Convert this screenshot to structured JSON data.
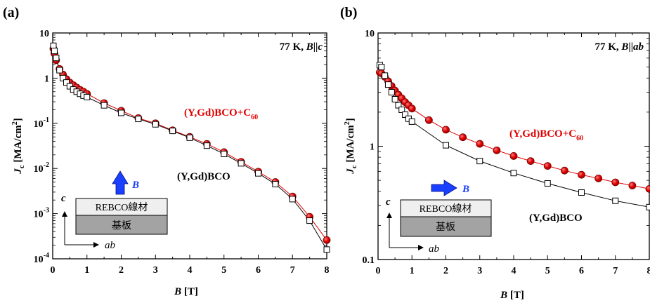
{
  "chart_data": [
    {
      "panel_label": "(a)",
      "type": "scatter",
      "condition_temp": "77 K, ",
      "condition_B": "B",
      "condition_rel": "||",
      "condition_dir": "c",
      "xlabel_main": "B",
      "xlabel_unit": " [T]",
      "ylabel_J": "J",
      "ylabel_sub": "c",
      "ylabel_unit": " [MA/cm",
      "ylabel_sup": "2",
      "ylabel_close": "]",
      "xlim": [
        0,
        8
      ],
      "ylim": [
        0.0001,
        10
      ],
      "yscale": "log",
      "x_ticks": [
        "0",
        "1",
        "2",
        "3",
        "4",
        "5",
        "6",
        "7",
        "8"
      ],
      "y_ticks": [
        {
          "base": "10",
          "exp": "-4",
          "value": 0.0001
        },
        {
          "base": "10",
          "exp": "-3",
          "value": 0.001
        },
        {
          "base": "10",
          "exp": "-2",
          "value": 0.01
        },
        {
          "base": "10",
          "exp": "-1",
          "value": 0.1
        },
        {
          "base": "1",
          "exp": "",
          "value": 1
        },
        {
          "base": "10",
          "exp": "",
          "value": 10
        }
      ],
      "series": [
        {
          "name_main": "(Y,Gd)BCO+C",
          "name_sub": "60",
          "color": "#e00000",
          "marker": "circle",
          "x": [
            0.02,
            0.05,
            0.1,
            0.2,
            0.3,
            0.4,
            0.5,
            0.6,
            0.7,
            0.8,
            0.9,
            1.0,
            1.5,
            2.0,
            2.5,
            3.0,
            3.5,
            4.0,
            4.5,
            5.0,
            5.5,
            6.0,
            6.5,
            7.0,
            7.5,
            8.0
          ],
          "y": [
            4.5,
            3.5,
            2.5,
            1.6,
            1.2,
            0.95,
            0.8,
            0.7,
            0.62,
            0.55,
            0.5,
            0.45,
            0.28,
            0.19,
            0.13,
            0.1,
            0.07,
            0.05,
            0.035,
            0.023,
            0.014,
            0.0085,
            0.005,
            0.0024,
            0.00085,
            0.00026
          ]
        },
        {
          "name_main": "(Y,Gd)BCO",
          "name_sub": "",
          "color": "#000000",
          "marker": "square",
          "x": [
            0.02,
            0.05,
            0.1,
            0.2,
            0.3,
            0.4,
            0.5,
            0.6,
            0.7,
            0.8,
            0.9,
            1.0,
            1.5,
            2.0,
            2.5,
            3.0,
            3.5,
            4.0,
            4.5,
            5.0,
            5.5,
            6.0,
            6.5,
            7.0,
            7.5,
            8.0
          ],
          "y": [
            5.2,
            4.0,
            2.8,
            1.5,
            1.0,
            0.8,
            0.66,
            0.56,
            0.5,
            0.45,
            0.41,
            0.38,
            0.25,
            0.17,
            0.125,
            0.095,
            0.068,
            0.048,
            0.032,
            0.021,
            0.013,
            0.0078,
            0.0045,
            0.0021,
            0.0007,
            0.00016
          ]
        }
      ]
    },
    {
      "panel_label": "(b)",
      "type": "scatter",
      "condition_temp": "77 K, ",
      "condition_B": "B",
      "condition_rel": "||",
      "condition_dir": "ab",
      "xlabel_main": "B",
      "xlabel_unit": " [T]",
      "ylabel_J": "J",
      "ylabel_sub": "c",
      "ylabel_unit": " [MA/cm",
      "ylabel_sup": "2",
      "ylabel_close": "]",
      "xlim": [
        0,
        8
      ],
      "ylim": [
        0.1,
        10
      ],
      "yscale": "log",
      "x_ticks": [
        "0",
        "1",
        "2",
        "3",
        "4",
        "5",
        "6",
        "7",
        "8"
      ],
      "y_ticks": [
        {
          "base": "0.1",
          "exp": "",
          "value": 0.1
        },
        {
          "base": "1",
          "exp": "",
          "value": 1
        },
        {
          "base": "10",
          "exp": "",
          "value": 10
        }
      ],
      "series": [
        {
          "name_main": "(Y,Gd)BCO+C",
          "name_sub": "60",
          "color": "#e00000",
          "marker": "circle",
          "x": [
            0.05,
            0.1,
            0.2,
            0.3,
            0.4,
            0.5,
            0.6,
            0.7,
            0.8,
            0.9,
            1.0,
            1.5,
            2.0,
            2.5,
            3.0,
            3.5,
            4.0,
            4.5,
            5.0,
            5.5,
            6.0,
            6.5,
            7.0,
            7.5,
            8.0
          ],
          "y": [
            4.5,
            4.4,
            4.1,
            3.75,
            3.4,
            3.1,
            2.85,
            2.65,
            2.45,
            2.3,
            2.15,
            1.7,
            1.4,
            1.2,
            1.05,
            0.92,
            0.82,
            0.74,
            0.67,
            0.61,
            0.56,
            0.52,
            0.48,
            0.45,
            0.42
          ]
        },
        {
          "name_main": "(Y,Gd)BCO",
          "name_sub": "",
          "color": "#000000",
          "marker": "square",
          "x": [
            0.05,
            0.1,
            0.2,
            0.3,
            0.4,
            0.5,
            0.6,
            0.7,
            0.8,
            0.9,
            1.0,
            2.0,
            3.0,
            4.0,
            5.0,
            6.0,
            7.0,
            8.0
          ],
          "y": [
            5.2,
            5.0,
            4.2,
            3.5,
            3.0,
            2.6,
            2.3,
            2.1,
            1.9,
            1.75,
            1.65,
            1.02,
            0.74,
            0.58,
            0.47,
            0.39,
            0.33,
            0.29
          ]
        }
      ]
    }
  ],
  "inset": {
    "field_symbol": "B",
    "layer_top": "REBCO線材",
    "layer_bottom": "基板",
    "axis_c": "c",
    "axis_ab": "ab",
    "arrow_color": "#1a3fff",
    "film_color": "#efefef",
    "substrate_color": "#a3a3a3"
  }
}
